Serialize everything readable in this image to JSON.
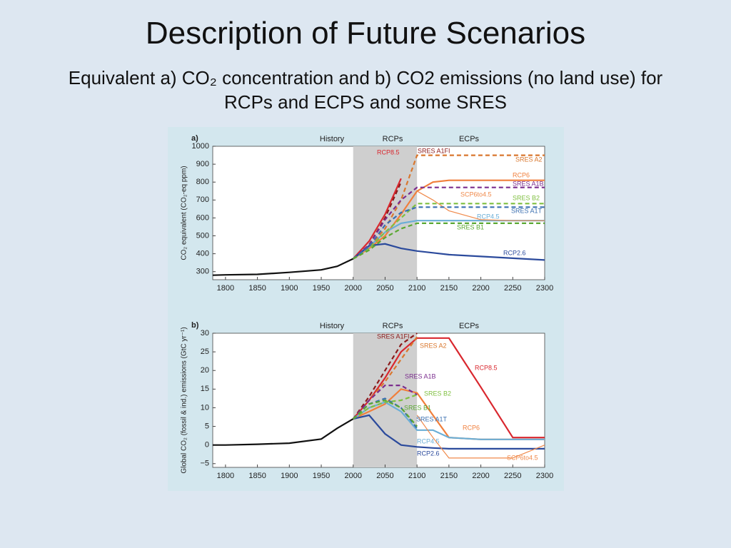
{
  "header": {
    "title": "Description of Future Scenarios",
    "subtitle": "Equivalent a) CO₂ concentration and b) CO2 emissions (no land use) for RCPs and ECPS and some SRES"
  },
  "chart_data": [
    {
      "type": "line",
      "panel_label": "a)",
      "ylabel": "CO₂ equivalent (CO₂-eq ppm)",
      "annotations": [
        "History",
        "RCPs",
        "ECPs"
      ],
      "shaded": [
        2000,
        2100
      ],
      "x": [
        1780,
        1800,
        1850,
        1900,
        1950,
        1975,
        2000,
        2025,
        2050,
        2075,
        2100,
        2125,
        2150,
        2200,
        2250,
        2300
      ],
      "xlim": [
        1780,
        2300
      ],
      "xticks": [
        1800,
        1850,
        1900,
        1950,
        2000,
        2050,
        2100,
        2150,
        2200,
        2250,
        2300
      ],
      "ylim": [
        255,
        1000
      ],
      "yticks": [
        300,
        400,
        500,
        600,
        700,
        800,
        900,
        1000
      ],
      "series": [
        {
          "color": "#111111",
          "values": [
            280,
            282,
            285,
            296,
            310,
            330,
            372,
            null,
            null,
            null,
            null,
            null,
            null,
            null,
            null,
            null
          ]
        },
        {
          "name": "RCP8.5",
          "color": "#d9272e",
          "values": [
            null,
            null,
            null,
            null,
            null,
            null,
            372,
            470,
            620,
            820,
            null,
            null,
            null,
            null,
            null,
            null
          ]
        },
        {
          "name": "RCP6",
          "color": "#f07f3c",
          "values": [
            null,
            null,
            null,
            null,
            null,
            null,
            372,
            430,
            500,
            620,
            750,
            800,
            810,
            810,
            810,
            810
          ]
        },
        {
          "name": "RCP4.5",
          "color": "#6aaed6",
          "values": [
            null,
            null,
            null,
            null,
            null,
            null,
            372,
            440,
            520,
            570,
            585,
            585,
            585,
            585,
            585,
            585
          ]
        },
        {
          "name": "RCP2.6",
          "color": "#2b4a9c",
          "values": [
            null,
            null,
            null,
            null,
            null,
            null,
            372,
            445,
            455,
            430,
            415,
            405,
            395,
            385,
            375,
            365
          ]
        },
        {
          "name": "SCP6to4.5",
          "color": "#f08a4b",
          "thin": true,
          "values": [
            null,
            null,
            null,
            null,
            null,
            null,
            null,
            null,
            null,
            null,
            750,
            700,
            640,
            590,
            585,
            585
          ]
        },
        {
          "name": "SRES A1FI",
          "color": "#8b1a1a",
          "dashed": true,
          "values": [
            null,
            null,
            null,
            null,
            null,
            null,
            372,
            450,
            600,
            800,
            null,
            null,
            null,
            null,
            null,
            null
          ]
        },
        {
          "name": "SRES A2",
          "color": "#d9772e",
          "dashed": true,
          "values": [
            null,
            null,
            null,
            null,
            null,
            null,
            372,
            440,
            540,
            700,
            950,
            950,
            950,
            950,
            950,
            950
          ]
        },
        {
          "name": "SRES A1B",
          "color": "#7b2d8e",
          "dashed": true,
          "values": [
            null,
            null,
            null,
            null,
            null,
            null,
            372,
            450,
            590,
            700,
            770,
            770,
            770,
            770,
            770,
            770
          ]
        },
        {
          "name": "SRES B2",
          "color": "#7fbf3f",
          "dashed": true,
          "values": [
            null,
            null,
            null,
            null,
            null,
            null,
            372,
            430,
            520,
            600,
            680,
            680,
            680,
            680,
            680,
            680
          ]
        },
        {
          "name": "SRES A1T",
          "color": "#3a6fb0",
          "dashed": true,
          "values": [
            null,
            null,
            null,
            null,
            null,
            null,
            372,
            440,
            560,
            630,
            660,
            660,
            660,
            660,
            660,
            660
          ]
        },
        {
          "name": "SRES B1",
          "color": "#5aa832",
          "dashed": true,
          "values": [
            null,
            null,
            null,
            null,
            null,
            null,
            372,
            420,
            490,
            540,
            570,
            570,
            570,
            570,
            570,
            570
          ]
        }
      ]
    },
    {
      "type": "line",
      "panel_label": "b)",
      "ylabel": "Global CO₂ (fossil & ind.) emissions (GtC yr⁻¹)",
      "annotations": [
        "History",
        "RCPs",
        "ECPs"
      ],
      "shaded": [
        2000,
        2100
      ],
      "x": [
        1780,
        1800,
        1850,
        1900,
        1950,
        1975,
        2000,
        2025,
        2050,
        2075,
        2100,
        2125,
        2150,
        2200,
        2250,
        2300
      ],
      "xlim": [
        1780,
        2300
      ],
      "xticks": [
        1800,
        1850,
        1900,
        1950,
        2000,
        2050,
        2100,
        2150,
        2200,
        2250,
        2300
      ],
      "ylim": [
        -6,
        30
      ],
      "yticks": [
        {
          "value": -5,
          "label": "−5"
        },
        0,
        5,
        10,
        15,
        20,
        25,
        30
      ],
      "series": [
        {
          "color": "#111111",
          "values": [
            0,
            0,
            0.2,
            0.5,
            1.6,
            4.5,
            7,
            null,
            null,
            null,
            null,
            null,
            null,
            null,
            null,
            null
          ]
        },
        {
          "name": "RCP8.5",
          "color": "#d9272e",
          "values": [
            null,
            null,
            null,
            null,
            null,
            null,
            7,
            12,
            18,
            25,
            28.7,
            28.7,
            28.7,
            15.5,
            2,
            2
          ]
        },
        {
          "name": "RCP6",
          "color": "#f07f3c",
          "values": [
            null,
            null,
            null,
            null,
            null,
            null,
            7,
            9,
            11,
            15,
            14,
            8,
            2,
            1.5,
            1.5,
            1.5
          ]
        },
        {
          "name": "RCP4.5",
          "color": "#6aaed6",
          "values": [
            null,
            null,
            null,
            null,
            null,
            null,
            7,
            10,
            11.5,
            9,
            4,
            4,
            2,
            1.5,
            1.5,
            1.5
          ]
        },
        {
          "name": "RCP2.6",
          "color": "#2b4a9c",
          "values": [
            null,
            null,
            null,
            null,
            null,
            null,
            7,
            8,
            3,
            0,
            -0.5,
            -0.8,
            -1,
            -1,
            -1,
            -1
          ]
        },
        {
          "name": "SCP6to4.5",
          "color": "#f08a4b",
          "thin": true,
          "values": [
            null,
            null,
            null,
            null,
            null,
            null,
            null,
            null,
            null,
            null,
            8,
            2,
            -3.5,
            -3.5,
            -3.5,
            0
          ]
        },
        {
          "name": "SRES A1FI",
          "color": "#8b1a1a",
          "dashed": true,
          "values": [
            null,
            null,
            null,
            null,
            null,
            null,
            7,
            13,
            20,
            27,
            30,
            null,
            null,
            null,
            null,
            null
          ]
        },
        {
          "name": "SRES A2",
          "color": "#d9772e",
          "dashed": true,
          "values": [
            null,
            null,
            null,
            null,
            null,
            null,
            7,
            12,
            17,
            23,
            29,
            null,
            null,
            null,
            null,
            null
          ]
        },
        {
          "name": "SRES A1B",
          "color": "#7b2d8e",
          "dashed": true,
          "values": [
            null,
            null,
            null,
            null,
            null,
            null,
            7,
            12,
            16,
            16,
            13.5,
            null,
            null,
            null,
            null,
            null
          ]
        },
        {
          "name": "SRES B2",
          "color": "#7fbf3f",
          "dashed": true,
          "values": [
            null,
            null,
            null,
            null,
            null,
            null,
            7,
            10,
            11.5,
            12,
            13.5,
            null,
            null,
            null,
            null,
            null
          ]
        },
        {
          "name": "SRES A1T",
          "color": "#3a6fb0",
          "dashed": true,
          "values": [
            null,
            null,
            null,
            null,
            null,
            null,
            7,
            11,
            12.5,
            10,
            4.5,
            null,
            null,
            null,
            null,
            null
          ]
        },
        {
          "name": "SRES B1",
          "color": "#5aa832",
          "dashed": true,
          "values": [
            null,
            null,
            null,
            null,
            null,
            null,
            7,
            11,
            12,
            10,
            5,
            null,
            null,
            null,
            null,
            null
          ]
        }
      ]
    }
  ]
}
